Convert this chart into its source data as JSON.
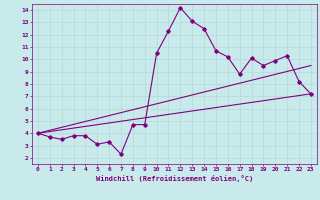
{
  "title": "",
  "xlabel": "Windchill (Refroidissement éolien,°C)",
  "ylabel": "",
  "background_color": "#c8eaea",
  "grid_color": "#b8d8d8",
  "line_color": "#800080",
  "xlim": [
    -0.5,
    23.5
  ],
  "ylim": [
    1.5,
    14.5
  ],
  "xticks": [
    0,
    1,
    2,
    3,
    4,
    5,
    6,
    7,
    8,
    9,
    10,
    11,
    12,
    13,
    14,
    15,
    16,
    17,
    18,
    19,
    20,
    21,
    22,
    23
  ],
  "yticks": [
    2,
    3,
    4,
    5,
    6,
    7,
    8,
    9,
    10,
    11,
    12,
    13,
    14
  ],
  "main_data": {
    "x": [
      0,
      1,
      2,
      3,
      4,
      5,
      6,
      7,
      8,
      9,
      10,
      11,
      12,
      13,
      14,
      15,
      16,
      17,
      18,
      19,
      20,
      21,
      22,
      23
    ],
    "y": [
      4.0,
      3.7,
      3.5,
      3.8,
      3.8,
      3.1,
      3.3,
      2.3,
      4.7,
      4.7,
      10.5,
      12.3,
      14.2,
      13.1,
      12.5,
      10.7,
      10.2,
      8.8,
      10.1,
      9.5,
      9.9,
      10.3,
      8.2,
      7.2
    ]
  },
  "line1": {
    "x": [
      0,
      23
    ],
    "y": [
      4.0,
      7.2
    ]
  },
  "line2": {
    "x": [
      0,
      23
    ],
    "y": [
      4.0,
      9.5
    ]
  }
}
